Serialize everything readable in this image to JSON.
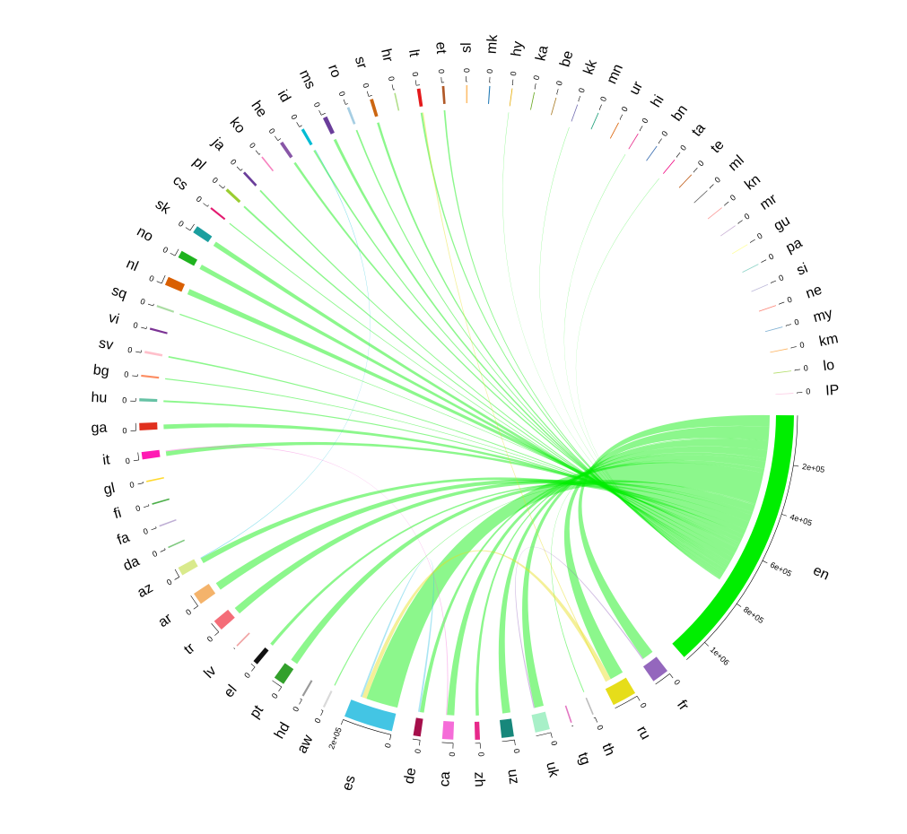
{
  "chart_data": {
    "type": "chord",
    "sectors": [
      {
        "name": "en",
        "color": "#00ee00",
        "value": 1100000,
        "ticks": [
          {
            "value": 200000,
            "label": "2e+05"
          },
          {
            "value": 400000,
            "label": "4e+05"
          },
          {
            "value": 600000,
            "label": "6e+05"
          },
          {
            "value": 800000,
            "label": "8e+05"
          },
          {
            "value": 1000000,
            "label": "1e+06"
          }
        ]
      },
      {
        "name": "fr",
        "color": "#9467bd",
        "value": 70000,
        "ticks": [
          0
        ]
      },
      {
        "name": "ru",
        "color": "#e6dd1a",
        "value": 100000,
        "ticks": [
          0
        ]
      },
      {
        "name": "th",
        "color": "#bdbdbd",
        "value": 6000,
        "ticks": [
          0
        ]
      },
      {
        "name": "tg",
        "color": "#e377c2",
        "value": 6000,
        "ticks": []
      },
      {
        "name": "uk",
        "color": "#a8f0c8",
        "value": 60000,
        "ticks": [
          0
        ]
      },
      {
        "name": "uz",
        "color": "#17877b",
        "value": 50000,
        "ticks": [
          0
        ]
      },
      {
        "name": "zh",
        "color": "#e7298a",
        "value": 20000,
        "ticks": [
          0
        ]
      },
      {
        "name": "ca",
        "color": "#f56cd8",
        "value": 45000,
        "ticks": [
          0
        ]
      },
      {
        "name": "de",
        "color": "#a50f4b",
        "value": 30000,
        "ticks": [
          0
        ]
      },
      {
        "name": "es",
        "color": "#43c5e4",
        "value": 200000,
        "ticks": [
          0,
          {
            "value": 200000,
            "label": "2e+05"
          }
        ]
      },
      {
        "name": "aw",
        "color": "#d9d9d9",
        "value": 8000,
        "ticks": [
          0
        ]
      },
      {
        "name": "hd",
        "color": "#999999",
        "value": 8000,
        "ticks": [
          0
        ]
      },
      {
        "name": "pt",
        "color": "#33a02c",
        "value": 45000,
        "ticks": [
          0
        ]
      },
      {
        "name": "el",
        "color": "#111111",
        "value": 20000,
        "ticks": [
          0
        ]
      },
      {
        "name": "lv",
        "color": "#f0a0a0",
        "value": 6000,
        "ticks": []
      },
      {
        "name": "tr",
        "color": "#f46d78",
        "value": 45000,
        "ticks": [
          0
        ]
      },
      {
        "name": "ar",
        "color": "#f4b36b",
        "value": 50000,
        "ticks": [
          0
        ]
      },
      {
        "name": "az",
        "color": "#d9ea8c",
        "value": 35000,
        "ticks": [
          0
        ]
      },
      {
        "name": "da",
        "color": "#7fc97f",
        "value": 6000,
        "ticks": [
          0
        ]
      },
      {
        "name": "fa",
        "color": "#beaed4",
        "value": 6000,
        "ticks": [
          0
        ]
      },
      {
        "name": "fi",
        "color": "#4daf4a",
        "value": 6000,
        "ticks": [
          0
        ]
      },
      {
        "name": "gl",
        "color": "#ffd92f",
        "value": 6000,
        "ticks": [
          0
        ]
      },
      {
        "name": "it",
        "color": "#ff1ab3",
        "value": 30000,
        "ticks": [
          0
        ]
      },
      {
        "name": "ga",
        "color": "#e0301e",
        "value": 30000,
        "ticks": [
          0
        ]
      },
      {
        "name": "hu",
        "color": "#66c2a5",
        "value": 12000,
        "ticks": [
          0
        ]
      },
      {
        "name": "bg",
        "color": "#fc8d62",
        "value": 8000,
        "ticks": [
          0
        ]
      },
      {
        "name": "sv",
        "color": "#ffc0cb",
        "value": 10000,
        "ticks": [
          0
        ]
      },
      {
        "name": "vi",
        "color": "#7b3294",
        "value": 8000,
        "ticks": [
          0
        ]
      },
      {
        "name": "sq",
        "color": "#abdda4",
        "value": 8000,
        "ticks": [
          0
        ]
      },
      {
        "name": "nl",
        "color": "#d95f02",
        "value": 35000,
        "ticks": [
          0
        ]
      },
      {
        "name": "no",
        "color": "#1fb31f",
        "value": 30000,
        "ticks": [
          0
        ]
      },
      {
        "name": "sk",
        "color": "#1b9e9e",
        "value": 30000,
        "ticks": [
          0
        ]
      },
      {
        "name": "cs",
        "color": "#e31a70",
        "value": 8000,
        "ticks": [
          0
        ]
      },
      {
        "name": "pl",
        "color": "#9acd32",
        "value": 12000,
        "ticks": [
          0
        ]
      },
      {
        "name": "ja",
        "color": "#6a3d9a",
        "value": 10000,
        "ticks": [
          0
        ]
      },
      {
        "name": "ko",
        "color": "#f781bf",
        "value": 6000,
        "ticks": [
          0
        ]
      },
      {
        "name": "he",
        "color": "#8856a7",
        "value": 14000,
        "ticks": [
          0
        ]
      },
      {
        "name": "id",
        "color": "#00bcd4",
        "value": 12000,
        "ticks": [
          0
        ]
      },
      {
        "name": "ms",
        "color": "#6a3d9a",
        "value": 18000,
        "ticks": [
          0
        ]
      },
      {
        "name": "ro",
        "color": "#a6cee3",
        "value": 10000,
        "ticks": [
          0
        ]
      },
      {
        "name": "sr",
        "color": "#cc6611",
        "value": 14000,
        "ticks": [
          0
        ]
      },
      {
        "name": "hr",
        "color": "#b2df8a",
        "value": 6000,
        "ticks": [
          0
        ]
      },
      {
        "name": "lt",
        "color": "#e41a1c",
        "value": 14000,
        "ticks": [
          0
        ]
      },
      {
        "name": "et",
        "color": "#b15928",
        "value": 10000,
        "ticks": [
          0
        ]
      },
      {
        "name": "sl",
        "color": "#fdbf6f",
        "value": 6000,
        "ticks": [
          0
        ]
      },
      {
        "name": "mk",
        "color": "#1f78b4",
        "value": 4000,
        "ticks": [
          0
        ]
      },
      {
        "name": "hy",
        "color": "#e6ab02",
        "value": 3000,
        "ticks": [
          0
        ]
      },
      {
        "name": "ka",
        "color": "#66a61e",
        "value": 3000,
        "ticks": [
          0
        ]
      },
      {
        "name": "be",
        "color": "#a6761d",
        "value": 3000,
        "ticks": [
          0
        ]
      },
      {
        "name": "kk",
        "color": "#7570b3",
        "value": 3000,
        "ticks": [
          0
        ]
      },
      {
        "name": "mn",
        "color": "#1b9e77",
        "value": 3000,
        "ticks": [
          0
        ]
      },
      {
        "name": "ur",
        "color": "#d95f02",
        "value": 3000,
        "ticks": [
          0
        ]
      },
      {
        "name": "hi",
        "color": "#e7298a",
        "value": 3000,
        "ticks": [
          0
        ]
      },
      {
        "name": "bn",
        "color": "#386cb0",
        "value": 3000,
        "ticks": [
          0
        ]
      },
      {
        "name": "ta",
        "color": "#f0027f",
        "value": 3000,
        "ticks": [
          0
        ]
      },
      {
        "name": "te",
        "color": "#bf5b17",
        "value": 3000,
        "ticks": [
          0
        ]
      },
      {
        "name": "ml",
        "color": "#666666",
        "value": 3000,
        "ticks": [
          0
        ]
      },
      {
        "name": "kn",
        "color": "#fb9a99",
        "value": 3000,
        "ticks": [
          0
        ]
      },
      {
        "name": "mr",
        "color": "#cab2d6",
        "value": 3000,
        "ticks": [
          0
        ]
      },
      {
        "name": "gu",
        "color": "#ffff99",
        "value": 3000,
        "ticks": [
          0
        ]
      },
      {
        "name": "pa",
        "color": "#8dd3c7",
        "value": 3000,
        "ticks": [
          0
        ]
      },
      {
        "name": "si",
        "color": "#bebada",
        "value": 3000,
        "ticks": [
          0
        ]
      },
      {
        "name": "ne",
        "color": "#fb8072",
        "value": 3000,
        "ticks": [
          0
        ]
      },
      {
        "name": "my",
        "color": "#80b1d3",
        "value": 3000,
        "ticks": [
          0
        ]
      },
      {
        "name": "km",
        "color": "#fdb462",
        "value": 3000,
        "ticks": [
          0
        ]
      },
      {
        "name": "lo",
        "color": "#b3de69",
        "value": 3000,
        "ticks": [
          0
        ]
      },
      {
        "name": "IP",
        "color": "#fccde5",
        "value": 3000,
        "ticks": [
          0
        ]
      }
    ],
    "flows": [
      {
        "from": "en",
        "to": "fr",
        "value": 50000
      },
      {
        "from": "en",
        "to": "ru",
        "value": 60000
      },
      {
        "from": "en",
        "to": "th",
        "value": 4000
      },
      {
        "from": "en",
        "to": "uk",
        "value": 40000
      },
      {
        "from": "en",
        "to": "uz",
        "value": 35000
      },
      {
        "from": "en",
        "to": "zh",
        "value": 14000
      },
      {
        "from": "en",
        "to": "ca",
        "value": 32000
      },
      {
        "from": "en",
        "to": "de",
        "value": 18000
      },
      {
        "from": "en",
        "to": "es",
        "value": 140000
      },
      {
        "from": "en",
        "to": "aw",
        "value": 5000
      },
      {
        "from": "en",
        "to": "pt",
        "value": 32000
      },
      {
        "from": "en",
        "to": "el",
        "value": 14000
      },
      {
        "from": "en",
        "to": "tr",
        "value": 32000
      },
      {
        "from": "en",
        "to": "ar",
        "value": 35000
      },
      {
        "from": "en",
        "to": "az",
        "value": 24000
      },
      {
        "from": "en",
        "to": "it",
        "value": 20000
      },
      {
        "from": "en",
        "to": "ga",
        "value": 20000
      },
      {
        "from": "en",
        "to": "hu",
        "value": 8000
      },
      {
        "from": "en",
        "to": "bg",
        "value": 5000
      },
      {
        "from": "en",
        "to": "sv",
        "value": 7000
      },
      {
        "from": "en",
        "to": "sq",
        "value": 5000
      },
      {
        "from": "en",
        "to": "nl",
        "value": 25000
      },
      {
        "from": "en",
        "to": "no",
        "value": 21000
      },
      {
        "from": "en",
        "to": "sk",
        "value": 21000
      },
      {
        "from": "en",
        "to": "cs",
        "value": 5000
      },
      {
        "from": "en",
        "to": "pl",
        "value": 8000
      },
      {
        "from": "en",
        "to": "ja",
        "value": 7000
      },
      {
        "from": "en",
        "to": "he",
        "value": 10000
      },
      {
        "from": "en",
        "to": "id",
        "value": 8000
      },
      {
        "from": "en",
        "to": "ms",
        "value": 12000
      },
      {
        "from": "en",
        "to": "ro",
        "value": 7000
      },
      {
        "from": "en",
        "to": "sr",
        "value": 10000
      },
      {
        "from": "en",
        "to": "lt",
        "value": 8000
      },
      {
        "from": "en",
        "to": "et",
        "value": 7000
      },
      {
        "from": "en",
        "to": "hy",
        "value": 2000
      },
      {
        "from": "en",
        "to": "kk",
        "value": 2000
      },
      {
        "from": "en",
        "to": "hi",
        "value": 2000
      },
      {
        "from": "en",
        "to": "ta",
        "value": 2000
      },
      {
        "from": "ru",
        "to": "es",
        "value": 20000
      },
      {
        "from": "ru",
        "to": "lt",
        "value": 5000
      },
      {
        "from": "es",
        "to": "de",
        "value": 8000
      },
      {
        "from": "fr",
        "to": "uk",
        "value": 5000
      },
      {
        "from": "id",
        "to": "az",
        "value": 3000
      },
      {
        "from": "ca",
        "to": "it",
        "value": 4000
      }
    ]
  }
}
